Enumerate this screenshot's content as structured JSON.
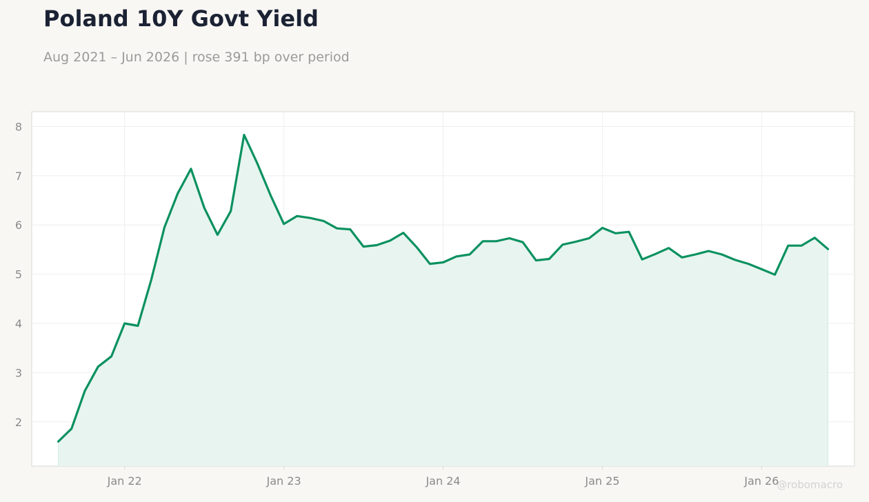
{
  "header": {
    "title": "Poland 10Y Govt Yield",
    "subtitle": "Aug 2021 – Jun 2026 | rose 391 bp over period"
  },
  "watermark": "@robomacro",
  "colors": {
    "background": "#f8f7f4",
    "plot_background": "#ffffff",
    "line": "#0a9160",
    "fill": "#e8f4f0",
    "title": "#1b2234",
    "subtitle": "#9a9a9a",
    "tick_label": "#8a8a8a",
    "grid": "#eeeeee",
    "frame": "#d9d9d3",
    "watermark": "#d2d2d2"
  },
  "chart_data": {
    "type": "area",
    "title": "Poland 10Y Govt Yield",
    "subtitle": "Aug 2021 – Jun 2026 | rose 391 bp over period",
    "xlabel": "",
    "ylabel": "",
    "x_ticks": [
      {
        "date": "2022-01",
        "label": "Jan 22"
      },
      {
        "date": "2023-01",
        "label": "Jan 23"
      },
      {
        "date": "2024-01",
        "label": "Jan 24"
      },
      {
        "date": "2025-01",
        "label": "Jan 25"
      },
      {
        "date": "2026-01",
        "label": "Jan 26"
      }
    ],
    "y_ticks": [
      2,
      3,
      4,
      5,
      6,
      7,
      8
    ],
    "xlim": [
      "2021-06",
      "2026-08"
    ],
    "ylim": [
      1.1,
      8.3
    ],
    "grid": true,
    "x": [
      "2021-08",
      "2021-09",
      "2021-10",
      "2021-11",
      "2021-12",
      "2022-01",
      "2022-02",
      "2022-03",
      "2022-04",
      "2022-05",
      "2022-06",
      "2022-07",
      "2022-08",
      "2022-09",
      "2022-10",
      "2022-11",
      "2022-12",
      "2023-01",
      "2023-02",
      "2023-03",
      "2023-04",
      "2023-05",
      "2023-06",
      "2023-07",
      "2023-08",
      "2023-09",
      "2023-10",
      "2023-11",
      "2023-12",
      "2024-01",
      "2024-02",
      "2024-03",
      "2024-04",
      "2024-05",
      "2024-06",
      "2024-07",
      "2024-08",
      "2024-09",
      "2024-10",
      "2024-11",
      "2024-12",
      "2025-01",
      "2025-02",
      "2025-03",
      "2025-04",
      "2025-05",
      "2025-06",
      "2025-07",
      "2025-08",
      "2025-09",
      "2025-10",
      "2025-11",
      "2025-12",
      "2026-01",
      "2026-02",
      "2026-03",
      "2026-04",
      "2026-05",
      "2026-06"
    ],
    "values": [
      1.6,
      1.86,
      2.63,
      3.12,
      3.33,
      4.0,
      3.95,
      4.88,
      5.95,
      6.64,
      7.14,
      6.35,
      5.8,
      6.28,
      7.83,
      7.25,
      6.6,
      6.02,
      6.18,
      6.14,
      6.08,
      5.93,
      5.91,
      5.56,
      5.59,
      5.68,
      5.84,
      5.55,
      5.21,
      5.24,
      5.36,
      5.4,
      5.67,
      5.67,
      5.73,
      5.65,
      5.28,
      5.31,
      5.6,
      5.66,
      5.73,
      5.94,
      5.83,
      5.86,
      5.3,
      5.41,
      5.53,
      5.34,
      5.4,
      5.47,
      5.4,
      5.29,
      5.21,
      5.1,
      4.99,
      5.58,
      5.58,
      5.74,
      5.51
    ]
  }
}
